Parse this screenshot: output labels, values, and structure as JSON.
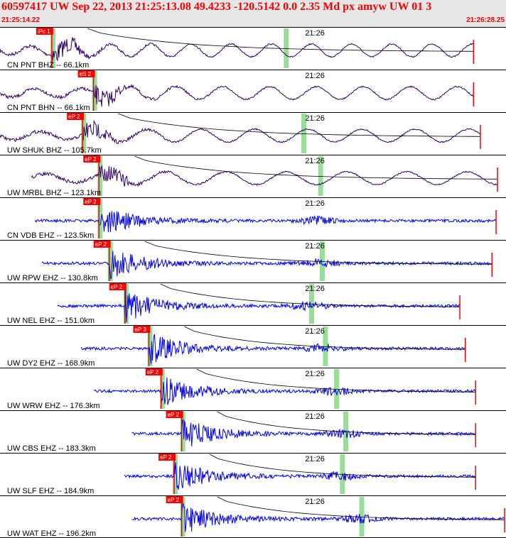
{
  "header": {
    "title": "60597417 UW Sep 22, 2013 21:25:13.08    49.4233 -120.5142  0.0 2.35 Md px amyw UW 01   3",
    "start_time": "21:25:14.22",
    "end_time": "21:26:28.25"
  },
  "colors": {
    "header_text": "#ff0000",
    "header_bg": "#e6e6e6",
    "broadband_trace": "#330066",
    "shortperiod_trace": "#0000ff",
    "pick": "#ff0000",
    "window": "#99dd99",
    "coda": "#000000"
  },
  "chart_data": {
    "type": "line",
    "subtype": "seismogram-record-section",
    "x_start": "21:25:14.22",
    "x_end": "21:26:28.25",
    "minute_label": "21:26",
    "traces": [
      {
        "label": "CN PNT BHZ -- 66.1km",
        "pick": "iPc 1",
        "pick_time": "21:25:21.8",
        "end_time": "21:26:23.5",
        "band": "broadband",
        "coda": true
      },
      {
        "label": "CN PNT BHN -- 66.1km",
        "pick": "eS 2",
        "pick_time": "21:25:27.9",
        "end_time": "21:26:23.5",
        "band": "broadband",
        "coda": false
      },
      {
        "label": "UW SHUK BHZ -- 105.7km",
        "pick": "eP 2",
        "pick_time": "21:25:26.3",
        "end_time": "21:26:24.5",
        "band": "broadband",
        "coda": true
      },
      {
        "label": "UW MRBL BHZ -- 123.1km",
        "pick": "eP 2",
        "pick_time": "21:25:28.7",
        "end_time": "21:26:27.0",
        "band": "broadband",
        "coda": true
      },
      {
        "label": "CN VDB EHZ -- 123.5km",
        "pick": "eP 2",
        "pick_time": "21:25:28.7",
        "end_time": "21:26:26.8",
        "band": "short-period",
        "coda": false
      },
      {
        "label": "UW RPW EHZ -- 130.8km",
        "pick": "eP 2",
        "pick_time": "21:25:30.2",
        "end_time": "21:26:26.2",
        "band": "short-period",
        "coda": true
      },
      {
        "label": "UW NEL EHZ -- 151.0km",
        "pick": "eP 2",
        "pick_time": "21:25:32.5",
        "end_time": "21:26:21.5",
        "band": "short-period",
        "coda": true
      },
      {
        "label": "UW DY2 EHZ -- 168.9km",
        "pick": "eP 3",
        "pick_time": "21:25:36.0",
        "end_time": "21:26:22.3",
        "band": "short-period",
        "coda": true
      },
      {
        "label": "UW WRW EHZ -- 176.3km",
        "pick": "eP 2",
        "pick_time": "21:25:37.8",
        "end_time": "21:26:23.8",
        "band": "short-period",
        "coda": true
      },
      {
        "label": "UW CBS EHZ -- 183.3km",
        "pick": "eP 2",
        "pick_time": "21:25:40.8",
        "end_time": "21:26:23.8",
        "band": "short-period",
        "coda": true
      },
      {
        "label": "UW SLF EHZ -- 184.9km",
        "pick": "eP 2",
        "pick_time": "21:25:39.7",
        "end_time": "21:26:23.8",
        "band": "short-period",
        "coda": true
      },
      {
        "label": "UW WAT EHZ -- 196.2km",
        "pick": "eP 2",
        "pick_time": "21:25:40.8",
        "end_time": "21:26:28.2",
        "band": "short-period",
        "coda": true
      }
    ]
  }
}
